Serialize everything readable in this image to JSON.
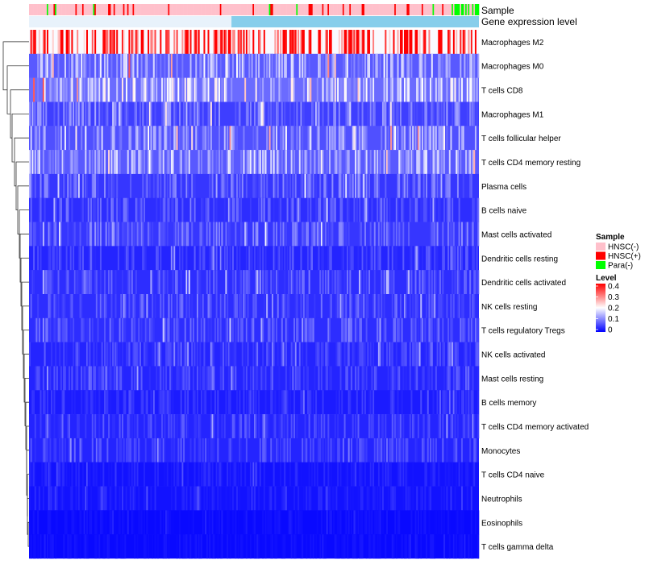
{
  "chart_data": {
    "type": "heatmap",
    "row_labels": [
      "Macrophages M2",
      "Macrophages M0",
      "T cells CD8",
      "Macrophages M1",
      "T cells follicular helper",
      "T cells CD4 memory resting",
      "Plasma cells",
      "B cells naive",
      "Mast cells activated",
      "Dendritic cells resting",
      "Dendritic cells activated",
      "NK cells resting",
      "T cells regulatory  Tregs",
      "NK cells activated",
      "Mast cells resting",
      "B cells memory",
      "T cells CD4 memory activated",
      "Monocytes",
      "T cells CD4 naive",
      "Neutrophils",
      "Eosinophils",
      "T cells gamma delta"
    ],
    "row_mean_levels": [
      0.28,
      0.1,
      0.12,
      0.07,
      0.09,
      0.1,
      0.06,
      0.05,
      0.06,
      0.04,
      0.05,
      0.05,
      0.05,
      0.04,
      0.04,
      0.03,
      0.04,
      0.04,
      0.02,
      0.02,
      0.01,
      0.01
    ],
    "annotations": {
      "sample_title": "Sample",
      "gene_title": "Gene expression level"
    },
    "legend_sample": {
      "title": "Sample",
      "items": [
        {
          "label": "HNSC(-)",
          "color": "#ffc0cb"
        },
        {
          "label": "HNSC(+)",
          "color": "#ff0000"
        },
        {
          "label": "Para(-)",
          "color": "#00ff00"
        }
      ]
    },
    "legend_level": {
      "title": "Level",
      "ticks": [
        "0.4",
        "0.3",
        "0.2",
        "0.1",
        "0"
      ],
      "range": [
        0,
        0.4
      ]
    },
    "colors": {
      "low": "#0000ff",
      "mid": "#ffffff",
      "high": "#ff0000",
      "gene_bar": "#87ceeb"
    }
  }
}
